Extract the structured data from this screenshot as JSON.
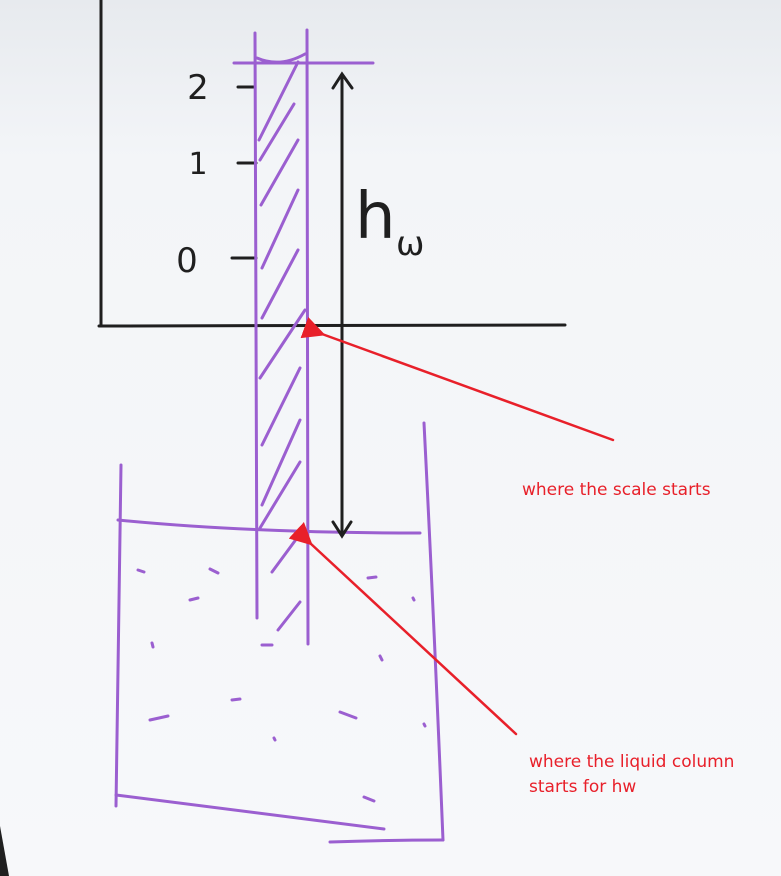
{
  "scale": {
    "tick_labels": [
      "2",
      "1",
      "0"
    ]
  },
  "hw_label": {
    "main": "h",
    "sub": "ω"
  },
  "annotations": [
    {
      "text": "where the scale starts"
    },
    {
      "text": "where the liquid column\nstarts for hw"
    }
  ],
  "colors": {
    "ink": "#1f1f1f",
    "marker": "#9b5fd0",
    "annotation": "#e8202a",
    "paper": "#f4f6f9"
  }
}
